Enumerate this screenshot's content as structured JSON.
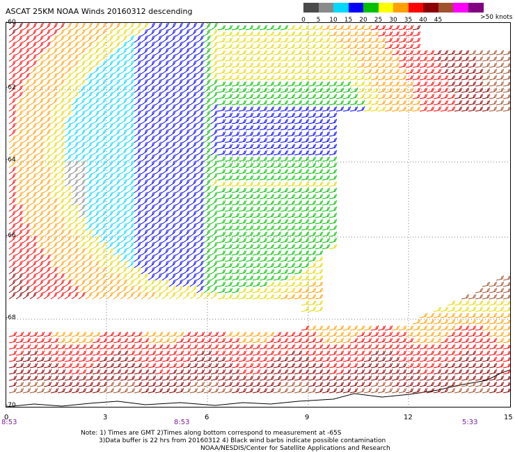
{
  "title": "ASCAT 25KM NOAA Winds 20160312 descending",
  "legend": {
    "labels": [
      "0",
      "5",
      "10",
      "15",
      "20",
      "25",
      "30",
      "35",
      "40",
      "45"
    ],
    "last_label": ">50 knots",
    "colors": [
      "#4a4a4a",
      "#8a8a8a",
      "#00d8ff",
      "#0000ff",
      "#00c000",
      "#ffff00",
      "#ffa000",
      "#ff0000",
      "#8b0000",
      "#a0522d",
      "#ff00ff",
      "#800080"
    ]
  },
  "lat_labels": [
    "-60",
    "-62",
    "-64",
    "-66",
    "-68",
    "-70"
  ],
  "lon_labels": [
    "0",
    "3",
    "6",
    "9",
    "12",
    "15"
  ],
  "time_labels": [
    "8:53",
    "8:53",
    "5:33"
  ],
  "notes": [
    "Note: 1) Times are GMT 2)Times along bottom correspond to measurement at -65S",
    "3)Data buffer is 22 hrs from 20160312 4) Black wind barbs indicate possible contamination",
    "NOAA/NESDIS/Center for Satellite Applications and Research"
  ]
}
